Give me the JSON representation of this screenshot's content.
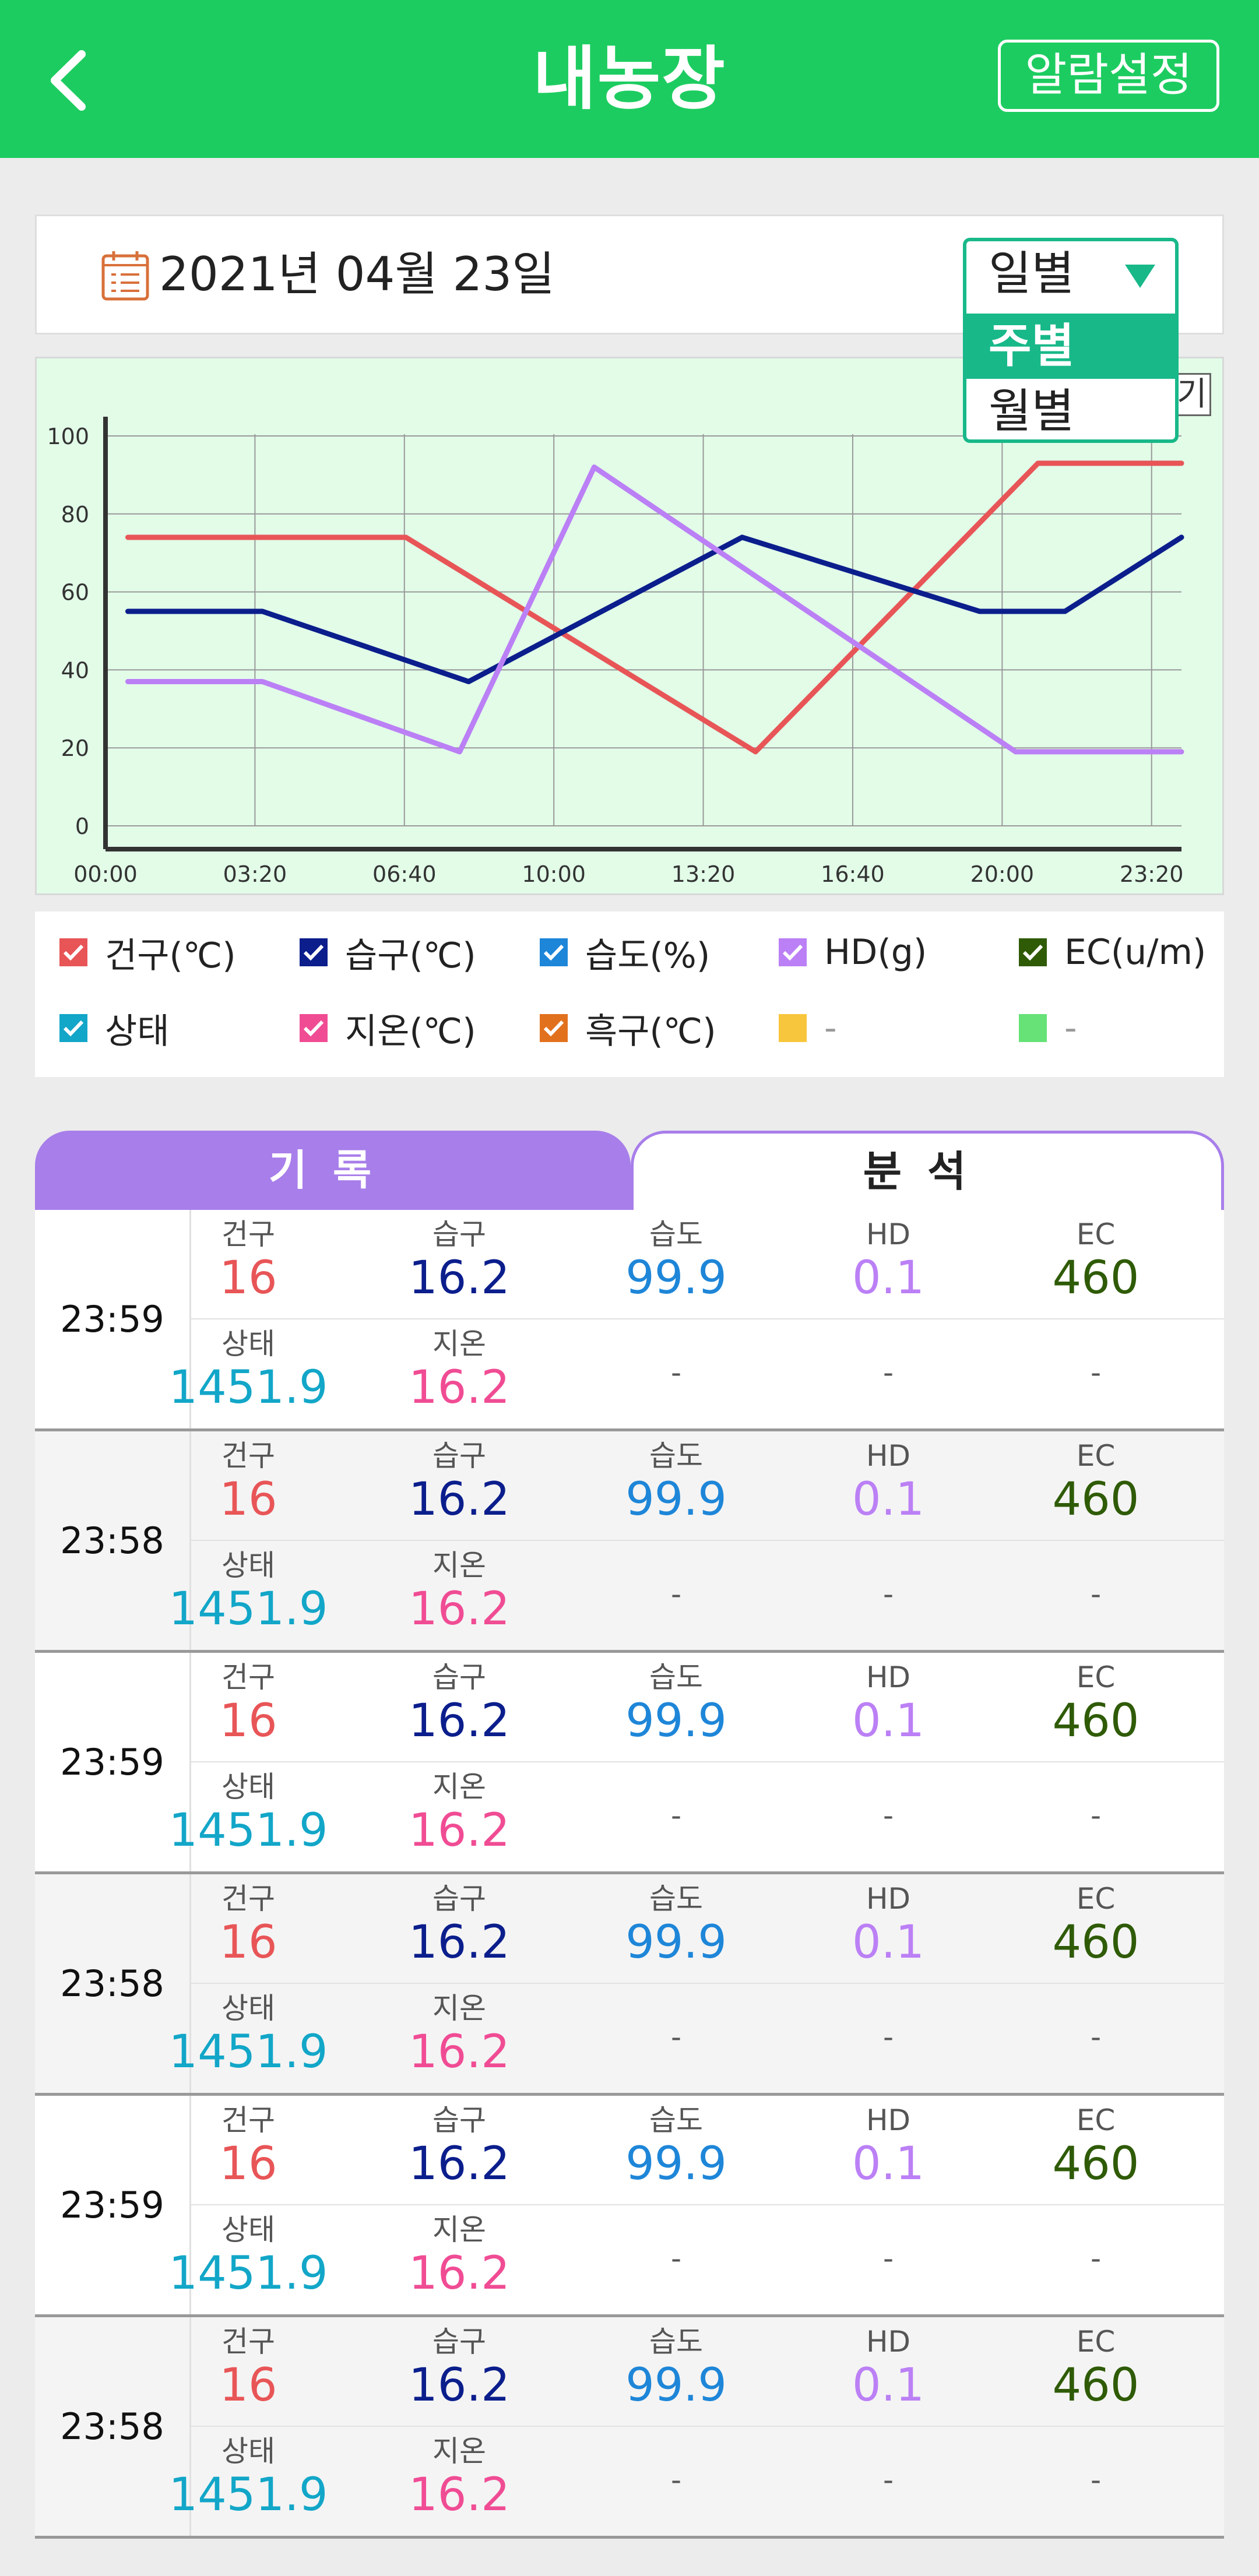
{
  "header": {
    "title": "내농장",
    "alarm_label": "알람설정"
  },
  "datebar": {
    "date": "2021년 04월 23일"
  },
  "period_select": {
    "current": "일별",
    "options": [
      "주별",
      "월별"
    ]
  },
  "chart_toggle_label": "기",
  "chart_data": {
    "type": "line",
    "x": [
      "00:00",
      "03:20",
      "06:40",
      "10:00",
      "13:20",
      "16:40",
      "20:00",
      "23:20"
    ],
    "ylim": [
      0,
      100
    ],
    "yticks": [
      0,
      20,
      40,
      60,
      80,
      100
    ],
    "grid": true,
    "series": [
      {
        "name": "건구(℃)",
        "color": "#e85557",
        "points": [
          [
            0.5,
            74
          ],
          [
            3.5,
            74
          ],
          [
            6.7,
            74
          ],
          [
            14.5,
            19
          ],
          [
            20.8,
            93
          ],
          [
            24,
            93
          ]
        ]
      },
      {
        "name": "습구(℃)",
        "color": "#0b1e8c",
        "points": [
          [
            0.5,
            55
          ],
          [
            3.5,
            55
          ],
          [
            8.1,
            37
          ],
          [
            14.2,
            74
          ],
          [
            19.5,
            55
          ],
          [
            21.4,
            55
          ],
          [
            24,
            74
          ]
        ]
      },
      {
        "name": "HD(g)",
        "color": "#bb80f5",
        "points": [
          [
            0.5,
            37
          ],
          [
            3.5,
            37
          ],
          [
            7.9,
            19
          ],
          [
            10.9,
            92
          ],
          [
            20.3,
            19
          ],
          [
            24,
            19
          ]
        ]
      }
    ]
  },
  "legend": [
    {
      "label": "건구(℃)",
      "color": "#e85557"
    },
    {
      "label": "습구(℃)",
      "color": "#0b1e8c"
    },
    {
      "label": "습도(%)",
      "color": "#1e86d8"
    },
    {
      "label": "HD(g)",
      "color": "#bb80f5"
    },
    {
      "label": "EC(u/m)",
      "color": "#2f5b07"
    },
    {
      "label": "상태",
      "color": "#12a6c8"
    },
    {
      "label": "지온(℃)",
      "color": "#f04c94"
    },
    {
      "label": "흑구(℃)",
      "color": "#e2711d"
    },
    {
      "label": "-",
      "color": "#f7c63c"
    },
    {
      "label": "-",
      "color": "#66e277"
    }
  ],
  "tabs": {
    "record": "기록",
    "analysis": "분석"
  },
  "labels": {
    "dry": "건구",
    "wet": "습구",
    "humidity": "습도",
    "hd": "HD",
    "ec": "EC",
    "status": "상태",
    "soil": "지온",
    "dash": "-"
  },
  "colors": {
    "dry": "#e85557",
    "wet": "#0b1e8c",
    "humidity": "#1e86d8",
    "hd": "#bb80f5",
    "ec": "#2f5b07",
    "status": "#12a6c8",
    "soil": "#f04c94"
  },
  "records": [
    {
      "time": "23:59",
      "dry": "16",
      "wet": "16.2",
      "humidity": "99.9",
      "hd": "0.1",
      "ec": "460",
      "status": "1451.9",
      "soil": "16.2"
    },
    {
      "time": "23:58",
      "dry": "16",
      "wet": "16.2",
      "humidity": "99.9",
      "hd": "0.1",
      "ec": "460",
      "status": "1451.9",
      "soil": "16.2"
    },
    {
      "time": "23:59",
      "dry": "16",
      "wet": "16.2",
      "humidity": "99.9",
      "hd": "0.1",
      "ec": "460",
      "status": "1451.9",
      "soil": "16.2"
    },
    {
      "time": "23:58",
      "dry": "16",
      "wet": "16.2",
      "humidity": "99.9",
      "hd": "0.1",
      "ec": "460",
      "status": "1451.9",
      "soil": "16.2"
    },
    {
      "time": "23:59",
      "dry": "16",
      "wet": "16.2",
      "humidity": "99.9",
      "hd": "0.1",
      "ec": "460",
      "status": "1451.9",
      "soil": "16.2"
    },
    {
      "time": "23:58",
      "dry": "16",
      "wet": "16.2",
      "humidity": "99.9",
      "hd": "0.1",
      "ec": "460",
      "status": "1451.9",
      "soil": "16.2"
    }
  ]
}
